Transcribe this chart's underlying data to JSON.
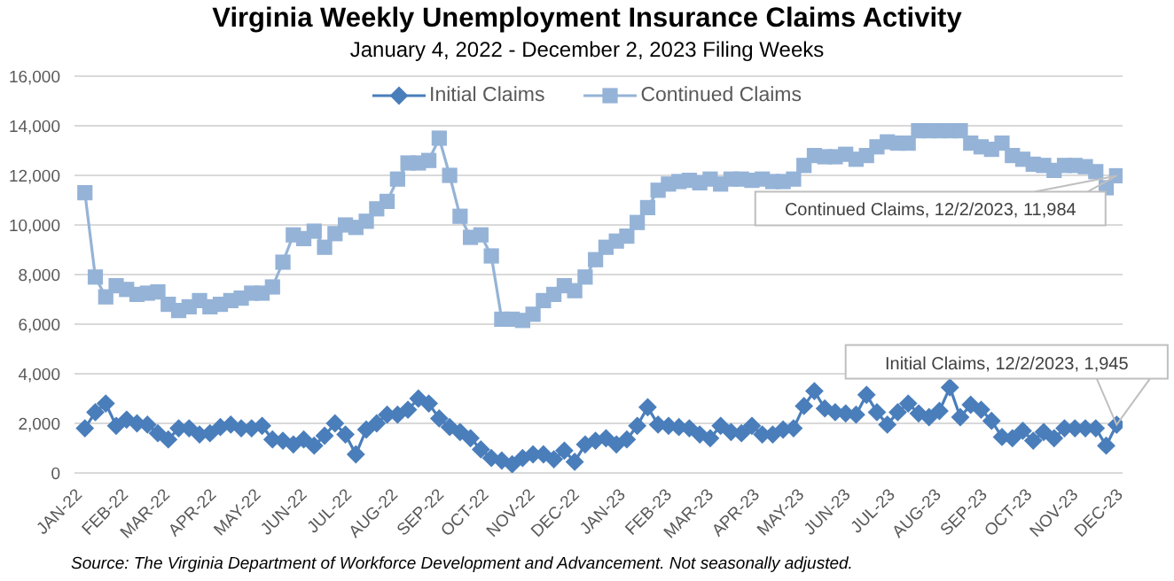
{
  "chart_data": {
    "type": "line",
    "title": "Virginia Weekly Unemployment Insurance Claims Activity",
    "subtitle": "January 4, 2022 - December 2, 2023 Filing Weeks",
    "x": [
      "2022-01-08",
      "2022-01-15",
      "2022-01-22",
      "2022-01-29",
      "2022-02-05",
      "2022-02-12",
      "2022-02-19",
      "2022-02-26",
      "2022-03-05",
      "2022-03-12",
      "2022-03-19",
      "2022-03-26",
      "2022-04-02",
      "2022-04-09",
      "2022-04-16",
      "2022-04-23",
      "2022-04-30",
      "2022-05-07",
      "2022-05-14",
      "2022-05-21",
      "2022-05-28",
      "2022-06-04",
      "2022-06-11",
      "2022-06-18",
      "2022-06-25",
      "2022-07-02",
      "2022-07-09",
      "2022-07-16",
      "2022-07-23",
      "2022-07-30",
      "2022-08-06",
      "2022-08-13",
      "2022-08-20",
      "2022-08-27",
      "2022-09-03",
      "2022-09-10",
      "2022-09-17",
      "2022-09-24",
      "2022-10-01",
      "2022-10-08",
      "2022-10-15",
      "2022-10-22",
      "2022-10-29",
      "2022-11-05",
      "2022-11-12",
      "2022-11-19",
      "2022-11-26",
      "2022-12-03",
      "2022-12-10",
      "2022-12-17",
      "2022-12-24",
      "2022-12-31",
      "2023-01-07",
      "2023-01-14",
      "2023-01-21",
      "2023-01-28",
      "2023-02-04",
      "2023-02-11",
      "2023-02-18",
      "2023-02-25",
      "2023-03-04",
      "2023-03-11",
      "2023-03-18",
      "2023-03-25",
      "2023-04-01",
      "2023-04-08",
      "2023-04-15",
      "2023-04-22",
      "2023-04-29",
      "2023-05-06",
      "2023-05-13",
      "2023-05-20",
      "2023-05-27",
      "2023-06-03",
      "2023-06-10",
      "2023-06-17",
      "2023-06-24",
      "2023-07-01",
      "2023-07-08",
      "2023-07-15",
      "2023-07-22",
      "2023-07-29",
      "2023-08-05",
      "2023-08-12",
      "2023-08-19",
      "2023-08-26",
      "2023-09-02",
      "2023-09-09",
      "2023-09-16",
      "2023-09-23",
      "2023-09-30",
      "2023-10-07",
      "2023-10-14",
      "2023-10-21",
      "2023-10-28",
      "2023-11-04",
      "2023-11-11",
      "2023-11-18",
      "2023-11-25",
      "2023-12-02"
    ],
    "series": [
      {
        "name": "Initial Claims",
        "color": "#4a7ebb",
        "marker": "diamond",
        "values": [
          1800,
          2450,
          2800,
          1900,
          2150,
          2000,
          1950,
          1600,
          1350,
          1800,
          1800,
          1550,
          1600,
          1850,
          1950,
          1800,
          1800,
          1900,
          1350,
          1300,
          1150,
          1350,
          1100,
          1500,
          2000,
          1550,
          750,
          1750,
          2000,
          2350,
          2350,
          2550,
          3000,
          2800,
          2200,
          1850,
          1650,
          1400,
          950,
          600,
          500,
          350,
          600,
          750,
          750,
          550,
          900,
          450,
          1150,
          1300,
          1400,
          1150,
          1350,
          1900,
          2650,
          1950,
          1900,
          1850,
          1800,
          1550,
          1400,
          1900,
          1650,
          1600,
          1900,
          1550,
          1550,
          1750,
          1800,
          2700,
          3300,
          2600,
          2450,
          2400,
          2350,
          3150,
          2450,
          1950,
          2450,
          2800,
          2400,
          2250,
          2500,
          3450,
          2250,
          2750,
          2550,
          2100,
          1450,
          1400,
          1700,
          1300,
          1650,
          1400,
          1800,
          1800,
          1800,
          1800,
          1100,
          1945
        ]
      },
      {
        "name": "Continued Claims",
        "color": "#95b3d7",
        "marker": "square",
        "values": [
          11300,
          7900,
          7100,
          7550,
          7400,
          7200,
          7250,
          7300,
          6800,
          6550,
          6700,
          6950,
          6700,
          6800,
          6950,
          7050,
          7250,
          7250,
          7500,
          8500,
          9600,
          9450,
          9750,
          9100,
          9650,
          10000,
          9900,
          10150,
          10650,
          10950,
          11850,
          12500,
          12500,
          12600,
          13500,
          12000,
          10350,
          9500,
          9600,
          8750,
          6200,
          6200,
          6150,
          6400,
          6950,
          7200,
          7550,
          7350,
          7900,
          8600,
          9100,
          9350,
          9550,
          10100,
          10700,
          11400,
          11650,
          11750,
          11800,
          11700,
          11850,
          11650,
          11850,
          11850,
          11800,
          11850,
          11750,
          11750,
          11850,
          12400,
          12800,
          12750,
          12750,
          12850,
          12650,
          12800,
          13150,
          13350,
          13300,
          13300,
          13800,
          13800,
          13800,
          13800,
          13800,
          13300,
          13150,
          13050,
          13300,
          12800,
          12650,
          12450,
          12400,
          12200,
          12400,
          12400,
          12350,
          12150,
          11500,
          11984
        ]
      }
    ],
    "xlim": [
      "2022-01-01",
      "2023-12-06"
    ],
    "xticks": [
      {
        "value": "2022-01-01",
        "label": "JAN-22"
      },
      {
        "value": "2022-02-01",
        "label": "FEB-22"
      },
      {
        "value": "2022-03-01",
        "label": "MAR-22"
      },
      {
        "value": "2022-04-01",
        "label": "APR-22"
      },
      {
        "value": "2022-05-01",
        "label": "MAY-22"
      },
      {
        "value": "2022-06-01",
        "label": "JUN-22"
      },
      {
        "value": "2022-07-01",
        "label": "JUL-22"
      },
      {
        "value": "2022-08-01",
        "label": "AUG-22"
      },
      {
        "value": "2022-09-01",
        "label": "SEP-22"
      },
      {
        "value": "2022-10-01",
        "label": "OCT-22"
      },
      {
        "value": "2022-11-01",
        "label": "NOV-22"
      },
      {
        "value": "2022-12-01",
        "label": "DEC-22"
      },
      {
        "value": "2023-01-01",
        "label": "JAN-23"
      },
      {
        "value": "2023-02-01",
        "label": "FEB-23"
      },
      {
        "value": "2023-03-01",
        "label": "MAR-23"
      },
      {
        "value": "2023-04-01",
        "label": "APR-23"
      },
      {
        "value": "2023-05-01",
        "label": "MAY-23"
      },
      {
        "value": "2023-06-01",
        "label": "JUN-23"
      },
      {
        "value": "2023-07-01",
        "label": "JUL-23"
      },
      {
        "value": "2023-08-01",
        "label": "AUG-23"
      },
      {
        "value": "2023-09-01",
        "label": "SEP-23"
      },
      {
        "value": "2023-10-01",
        "label": "OCT-23"
      },
      {
        "value": "2023-11-01",
        "label": "NOV-23"
      },
      {
        "value": "2023-12-01",
        "label": "DEC-23"
      }
    ],
    "ylim": [
      0,
      16000
    ],
    "yticks": [
      {
        "value": 0,
        "label": "0"
      },
      {
        "value": 2000,
        "label": "2,000"
      },
      {
        "value": 4000,
        "label": "4,000"
      },
      {
        "value": 6000,
        "label": "6,000"
      },
      {
        "value": 8000,
        "label": "8,000"
      },
      {
        "value": 10000,
        "label": "10,000"
      },
      {
        "value": 12000,
        "label": "12,000"
      },
      {
        "value": 14000,
        "label": "14,000"
      },
      {
        "value": 16000,
        "label": "16,000"
      }
    ],
    "grid": "y",
    "legend": "top",
    "line_style": "solid",
    "annotations": [
      {
        "text": "Continued Claims, 12/2/2023, 11,984",
        "x": "2023-12-02",
        "y": 11984
      },
      {
        "text": "Initial Claims, 12/2/2023, 1,945",
        "x": "2023-12-02",
        "y": 1945
      },
      "Source: The Virginia Department of Workforce Development and Advancement. Not seasonally adjusted."
    ]
  }
}
